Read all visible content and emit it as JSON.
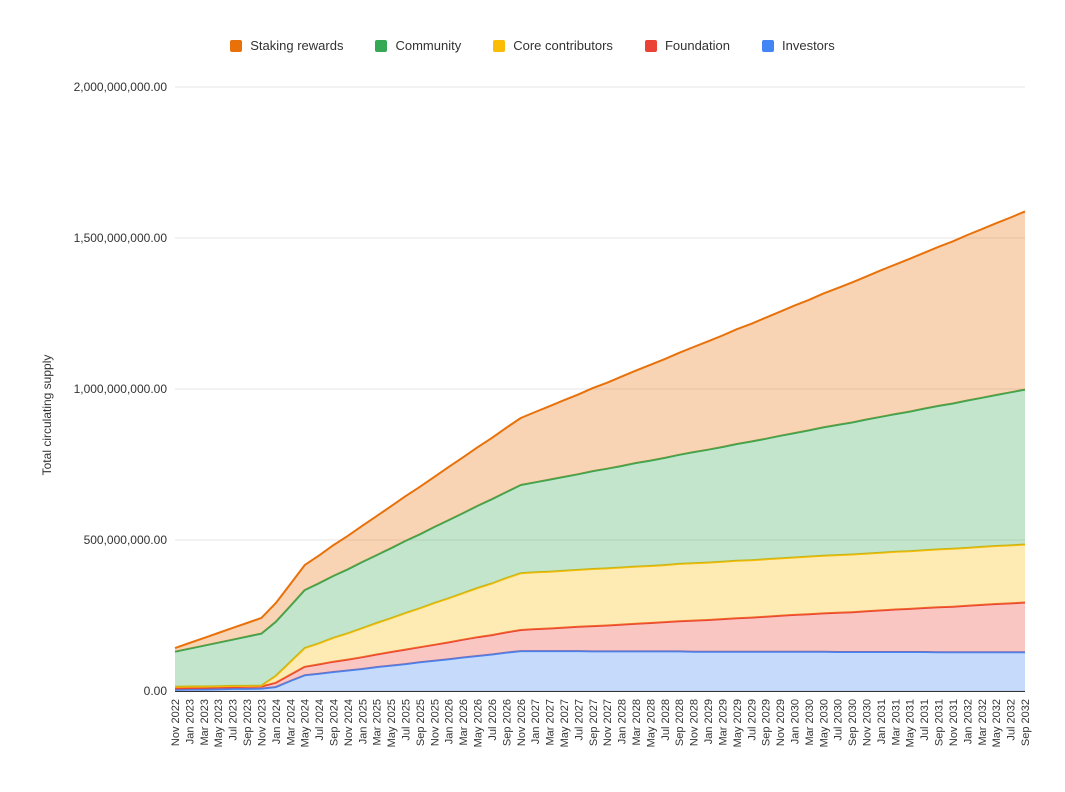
{
  "chart_data": {
    "type": "area",
    "stacked": true,
    "title": "",
    "xlabel": "",
    "ylabel": "Total circulating supply",
    "unit": "tokens",
    "values_scale": "millions",
    "ylim": [
      0,
      2000
    ],
    "grid": true,
    "legend_position": "top",
    "y_ticks": [
      {
        "value": 0,
        "label": "0.00"
      },
      {
        "value": 500,
        "label": "500,000,000.00"
      },
      {
        "value": 1000,
        "label": "1,000,000,000.00"
      },
      {
        "value": 1500,
        "label": "1,500,000,000.00"
      },
      {
        "value": 2000,
        "label": "2,000,000,000.00"
      }
    ],
    "x": [
      "Nov 2022",
      "Jan 2023",
      "Mar 2023",
      "May 2023",
      "Jul 2023",
      "Sep 2023",
      "Nov 2023",
      "Jan 2024",
      "Mar 2024",
      "May 2024",
      "Jul 2024",
      "Sep 2024",
      "Nov 2024",
      "Jan 2025",
      "Mar 2025",
      "May 2025",
      "Jul 2025",
      "Sep 2025",
      "Nov 2025",
      "Jan 2026",
      "Mar 2026",
      "May 2026",
      "Jul 2026",
      "Sep 2026",
      "Nov 2026",
      "Jan 2027",
      "Mar 2027",
      "May 2027",
      "Jul 2027",
      "Sep 2027",
      "Nov 2027",
      "Jan 2028",
      "Mar 2028",
      "May 2028",
      "Jul 2028",
      "Sep 2028",
      "Nov 2028",
      "Jan 2029",
      "Mar 2029",
      "May 2029",
      "Jul 2029",
      "Sep 2029",
      "Nov 2029",
      "Jan 2030",
      "Mar 2030",
      "May 2030",
      "Jul 2030",
      "Sep 2030",
      "Nov 2030",
      "Jan 2031",
      "Mar 2031",
      "May 2031",
      "Jul 2031",
      "Sep 2031",
      "Nov 2031",
      "Jan 2032",
      "Mar 2032",
      "May 2032",
      "Jul 2032",
      "Sep 2032"
    ],
    "legend_display_order": [
      "Staking rewards",
      "Community",
      "Core contributors",
      "Foundation",
      "Investors"
    ],
    "series": [
      {
        "name": "Investors",
        "color": "#4285F4",
        "values": [
          4,
          5,
          5,
          6,
          7,
          7,
          8,
          13,
          33,
          52,
          57,
          63,
          68,
          73,
          79,
          84,
          89,
          95,
          100,
          105,
          111,
          116,
          121,
          127,
          132,
          132,
          132,
          132,
          132,
          131,
          131,
          131,
          131,
          131,
          131,
          131,
          130,
          130,
          130,
          130,
          130,
          130,
          130,
          130,
          130,
          130,
          129,
          129,
          129,
          129,
          129,
          129,
          129,
          128,
          128,
          128,
          128,
          128,
          128,
          128
        ]
      },
      {
        "name": "Foundation",
        "color": "#EA4335",
        "values": [
          5,
          5,
          6,
          6,
          6,
          7,
          7,
          14,
          21,
          28,
          31,
          34,
          36,
          39,
          42,
          45,
          48,
          50,
          53,
          56,
          59,
          62,
          64,
          67,
          70,
          73,
          75,
          78,
          81,
          84,
          86,
          89,
          92,
          94,
          97,
          100,
          103,
          105,
          108,
          111,
          113,
          116,
          119,
          122,
          124,
          127,
          130,
          132,
          135,
          138,
          141,
          143,
          146,
          149,
          151,
          154,
          157,
          160,
          162,
          165
        ]
      },
      {
        "name": "Core contributors",
        "color": "#FBBC04",
        "values": [
          5,
          5,
          4,
          4,
          4,
          3,
          3,
          23,
          42,
          62,
          70,
          79,
          87,
          96,
          104,
          112,
          121,
          129,
          138,
          146,
          154,
          163,
          171,
          180,
          188,
          188,
          188,
          188,
          188,
          189,
          189,
          189,
          189,
          189,
          189,
          190,
          190,
          190,
          190,
          190,
          190,
          190,
          190,
          190,
          191,
          191,
          191,
          191,
          191,
          191,
          191,
          191,
          191,
          192,
          192,
          192,
          192,
          192,
          192,
          192
        ]
      },
      {
        "name": "Community",
        "color": "#34A853",
        "values": [
          116,
          125,
          135,
          144,
          153,
          163,
          172,
          179,
          185,
          192,
          199,
          205,
          212,
          219,
          225,
          232,
          239,
          245,
          252,
          259,
          265,
          272,
          279,
          285,
          292,
          298,
          305,
          311,
          317,
          324,
          330,
          336,
          343,
          349,
          355,
          361,
          368,
          374,
          380,
          387,
          393,
          399,
          406,
          412,
          418,
          425,
          431,
          437,
          444,
          450,
          456,
          462,
          469,
          475,
          481,
          488,
          494,
          500,
          507,
          513
        ]
      },
      {
        "name": "Staking rewards",
        "color": "#E8710A",
        "values": [
          12,
          19,
          25,
          32,
          39,
          45,
          52,
          62,
          73,
          83,
          92,
          102,
          111,
          120,
          129,
          139,
          148,
          157,
          166,
          176,
          185,
          194,
          203,
          213,
          222,
          233,
          243,
          254,
          264,
          275,
          285,
          296,
          306,
          317,
          327,
          338,
          348,
          359,
          369,
          380,
          390,
          401,
          411,
          422,
          432,
          443,
          453,
          464,
          474,
          485,
          495,
          506,
          516,
          527,
          537,
          548,
          558,
          569,
          579,
          590
        ]
      }
    ],
    "style": {
      "fill_opacity": 0.3,
      "line_width": 2,
      "grid_color": "#e6e6e6",
      "axis_line_color": "#333333",
      "tick_label_color": "#333333",
      "background": "#ffffff"
    }
  }
}
